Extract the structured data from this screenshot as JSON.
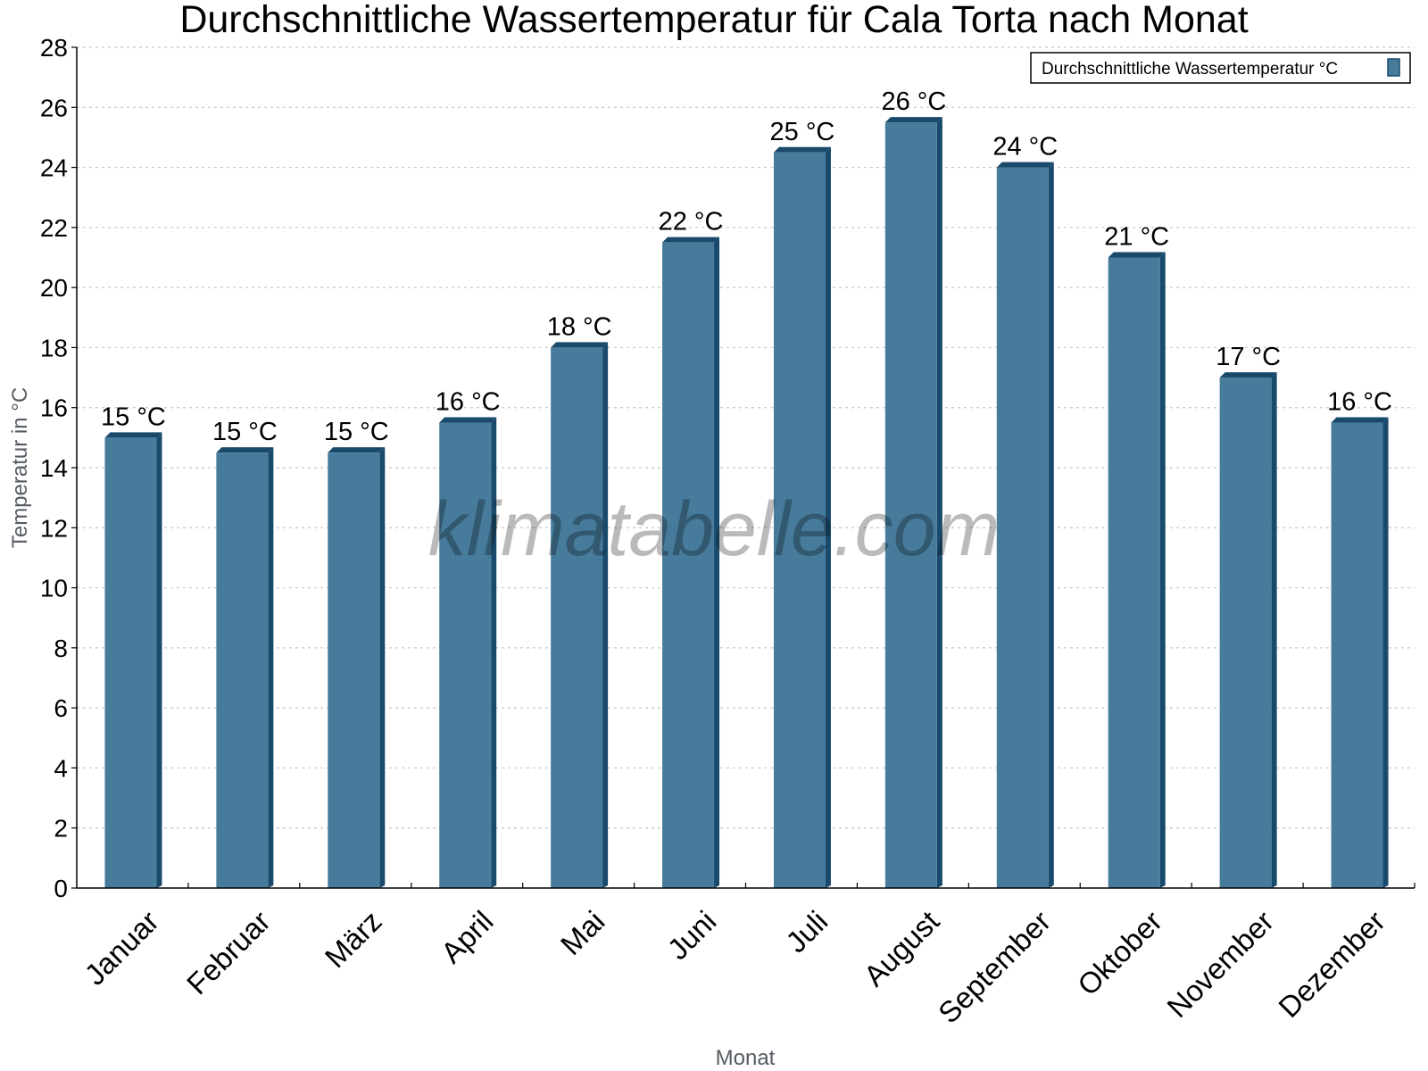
{
  "chart_data": {
    "type": "bar",
    "title": "Durchschnittliche Wassertemperatur für Cala Torta nach Monat",
    "xlabel": "Monat",
    "ylabel": "Temperatur in °C",
    "ylim": [
      0,
      28
    ],
    "yticks": [
      0,
      2,
      4,
      6,
      8,
      10,
      12,
      14,
      16,
      18,
      20,
      22,
      24,
      26,
      28
    ],
    "grid": true,
    "legend_position": "top-right",
    "categories": [
      "Januar",
      "Februar",
      "März",
      "April",
      "Mai",
      "Juni",
      "Juli",
      "August",
      "September",
      "Oktober",
      "November",
      "Dezember"
    ],
    "series": [
      {
        "name": "Durchschnittliche Wassertemperatur °C",
        "values": [
          15,
          14.5,
          14.5,
          15.5,
          18,
          21.5,
          24.5,
          25.5,
          24,
          21,
          17,
          15.5
        ],
        "data_labels": [
          "15 °C",
          "15 °C",
          "15 °C",
          "16 °C",
          "18 °C",
          "22 °C",
          "25 °C",
          "26 °C",
          "24 °C",
          "21 °C",
          "17 °C",
          "16 °C"
        ],
        "color": "#467b9c",
        "edge_color": "#1a4a6b"
      }
    ],
    "watermark": "klimatabelle.com"
  }
}
